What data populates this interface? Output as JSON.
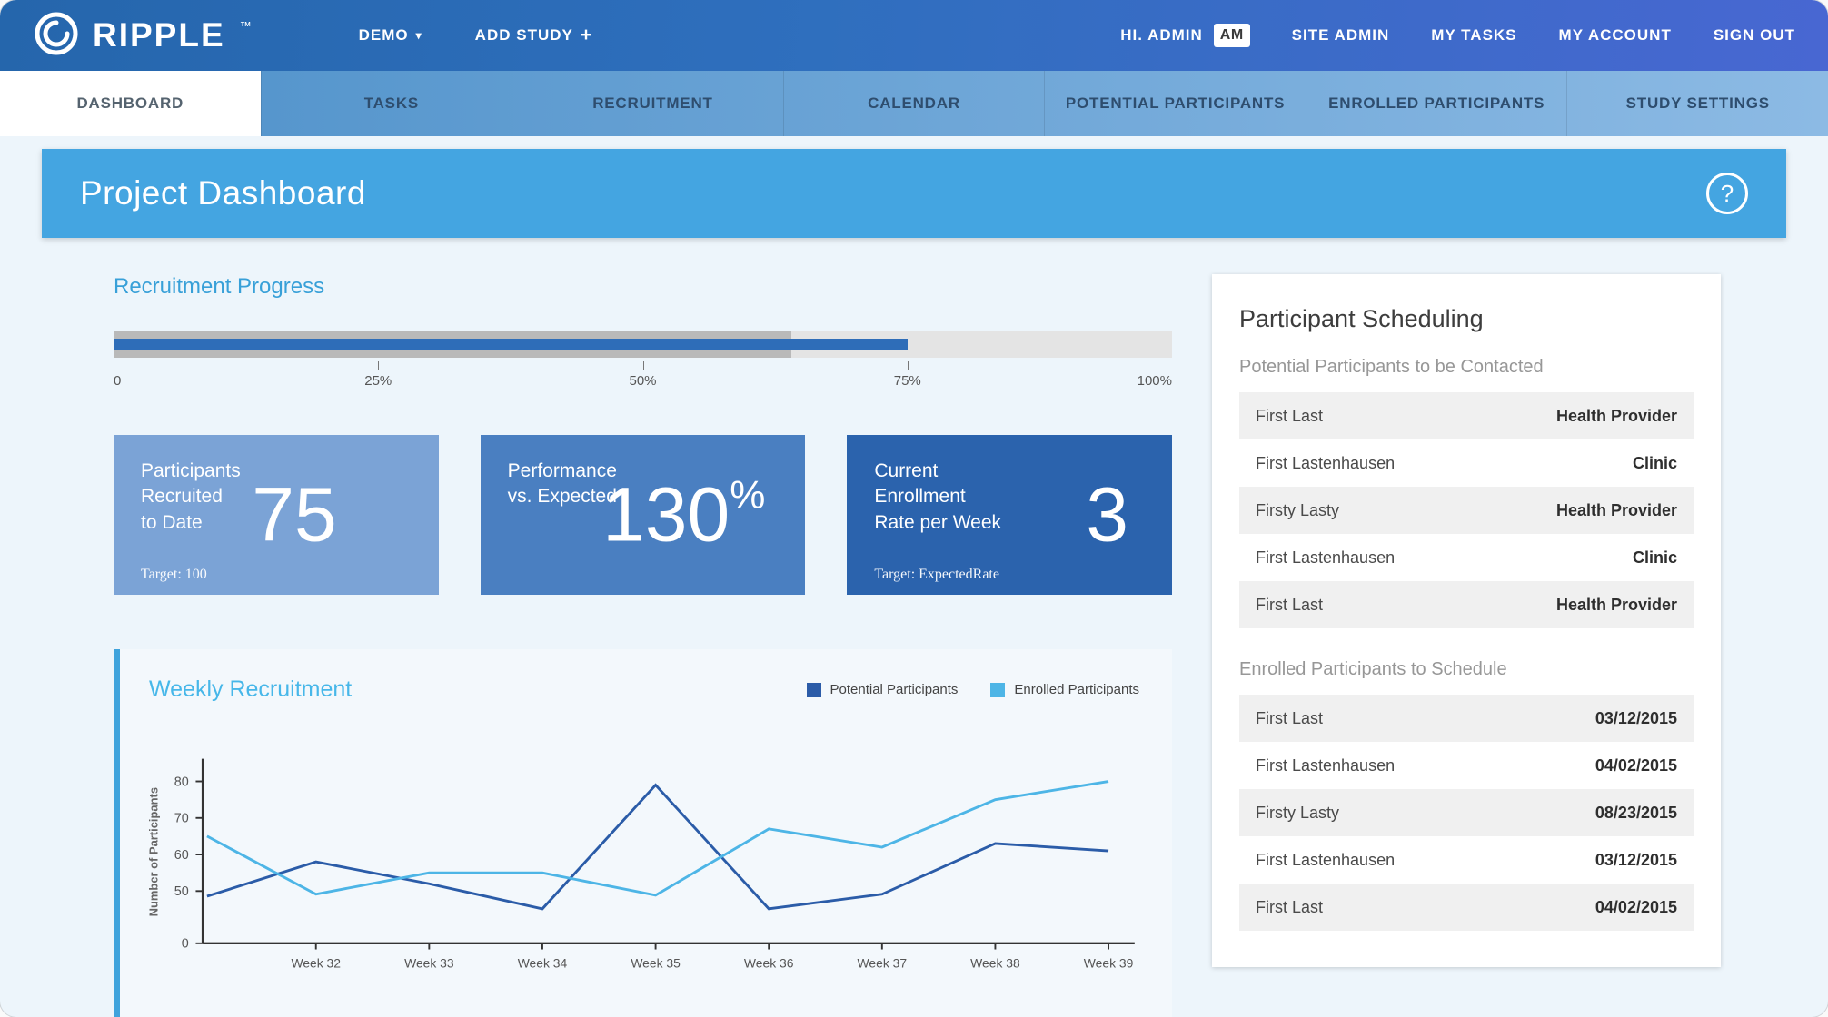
{
  "navbar": {
    "brand": "RIPPLE",
    "brand_tm": "™",
    "demo_label": "DEMO",
    "demo_caret": "▾",
    "add_study_label": "ADD STUDY",
    "add_study_plus": "+",
    "greeting": "HI. ADMIN",
    "avatar_initials": "AM",
    "links": [
      "SITE ADMIN",
      "MY TASKS",
      "MY ACCOUNT",
      "SIGN OUT"
    ]
  },
  "tabs": [
    {
      "label": "DASHBOARD",
      "active": true
    },
    {
      "label": "TASKS"
    },
    {
      "label": "RECRUITMENT"
    },
    {
      "label": "CALENDAR"
    },
    {
      "label": "POTENTIAL PARTICIPANTS"
    },
    {
      "label": "ENROLLED PARTICIPANTS"
    },
    {
      "label": "STUDY SETTINGS"
    }
  ],
  "page": {
    "title": "Project Dashboard",
    "help_glyph": "?"
  },
  "recruitment_progress": {
    "heading": "Recruitment Progress",
    "expected_pct": 64,
    "recruited_pct": 75,
    "scale_labels": [
      "0",
      "25%",
      "50%",
      "75%",
      "100%"
    ],
    "track_color": "#e4e4e4",
    "expected_color": "#b9b9b9",
    "recruited_color": "#2e6db8"
  },
  "stat_cards": [
    {
      "label": "Participants\nRecruited\nto Date",
      "value": "75",
      "target": "Target: 100",
      "bg": "#7ba3d6"
    },
    {
      "label": "Performance\nvs. Expected",
      "value": "130",
      "suffix": "%",
      "bg": "#4a7fc1"
    },
    {
      "label": "Current\nEnrollment\nRate per Week",
      "value": "3",
      "target": "Target: ExpectedRate",
      "bg": "#2b63ad"
    }
  ],
  "chart_data": {
    "type": "line",
    "title": "Weekly Recruitment",
    "ylabel": "Number of Participants",
    "categories": [
      "",
      "Week 32",
      "Week 33",
      "Week 34",
      "Week 35",
      "Week 36",
      "Week 37",
      "Week 38",
      "Week 39"
    ],
    "y_ticks": [
      0,
      50,
      60,
      70,
      80
    ],
    "grid": false,
    "legend_position": "top-right",
    "series": [
      {
        "name": "Potential Participants",
        "color": "#2b5ca8",
        "values": [
          45,
          58,
          52,
          33,
          79,
          33,
          47,
          63,
          61
        ]
      },
      {
        "name": "Enrolled Participants",
        "color": "#4db5e6",
        "values": [
          65,
          47,
          55,
          55,
          46,
          67,
          62,
          75,
          80
        ]
      }
    ]
  },
  "scheduling": {
    "title": "Participant Scheduling",
    "sections": [
      {
        "heading": "Potential Participants to be Contacted",
        "rows": [
          {
            "name": "First Last",
            "value": "Health Provider"
          },
          {
            "name": "First Lastenhausen",
            "value": "Clinic"
          },
          {
            "name": "Firsty Lasty",
            "value": "Health Provider"
          },
          {
            "name": "First Lastenhausen",
            "value": "Clinic"
          },
          {
            "name": "First Last",
            "value": "Health Provider"
          }
        ]
      },
      {
        "heading": "Enrolled Participants to Schedule",
        "rows": [
          {
            "name": "First Last",
            "value": "03/12/2015"
          },
          {
            "name": "First Lastenhausen",
            "value": "04/02/2015"
          },
          {
            "name": "Firsty Lasty",
            "value": "08/23/2015"
          },
          {
            "name": "First Lastenhausen",
            "value": "03/12/2015"
          },
          {
            "name": "First Last",
            "value": "04/02/2015"
          }
        ]
      }
    ]
  }
}
